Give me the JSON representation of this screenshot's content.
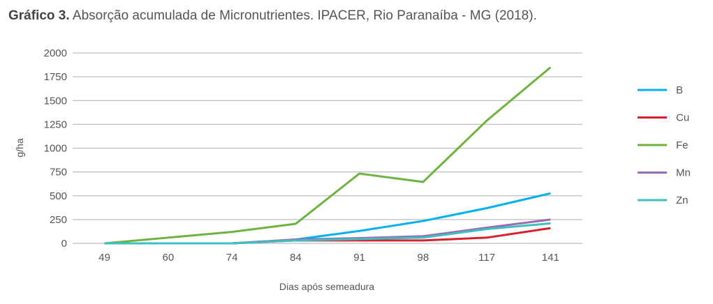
{
  "chart_data": {
    "type": "line",
    "title_bold": "Gráfico 3.",
    "title": "Absorção acumulada de Micronutrientes. IPACER, Rio Paranaíba - MG (2018).",
    "xlabel": "Dias após semeadura",
    "ylabel": "g/ha",
    "ylim": [
      0,
      2000
    ],
    "yticks": [
      0,
      250,
      500,
      750,
      1000,
      1250,
      1500,
      1750,
      2000
    ],
    "categories": [
      "49",
      "60",
      "74",
      "84",
      "91",
      "98",
      "117",
      "141"
    ],
    "grid": true,
    "legend": "right",
    "series": [
      {
        "name": "B",
        "color": "#00b0f0",
        "values": [
          0,
          0,
          0,
          40,
          130,
          235,
          370,
          525
        ]
      },
      {
        "name": "Cu",
        "color": "#d7202a",
        "values": [
          0,
          0,
          0,
          30,
          30,
          30,
          60,
          160
        ]
      },
      {
        "name": "Fe",
        "color": "#6db33f",
        "values": [
          0,
          60,
          120,
          205,
          733,
          645,
          1290,
          1850
        ]
      },
      {
        "name": "Mn",
        "color": "#9b6bb5",
        "values": [
          0,
          0,
          0,
          40,
          55,
          75,
          165,
          250
        ]
      },
      {
        "name": "Zn",
        "color": "#3cbfbf",
        "values": [
          0,
          0,
          0,
          30,
          45,
          60,
          150,
          210
        ]
      }
    ]
  }
}
